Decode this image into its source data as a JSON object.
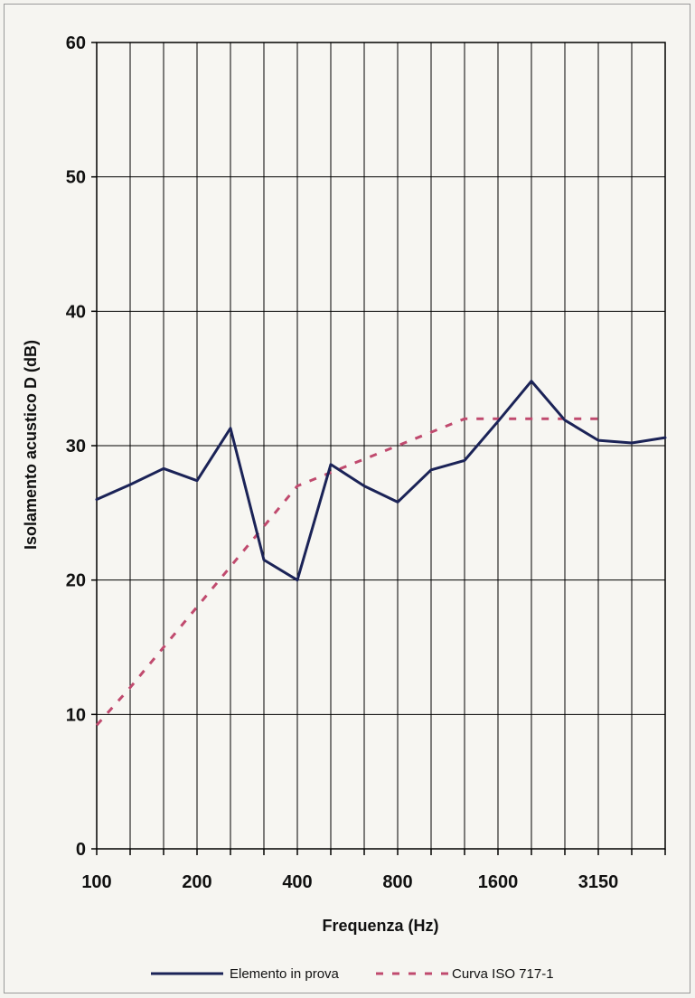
{
  "chart_data": {
    "type": "line",
    "title": "",
    "xlabel": "Frequenza  (Hz)",
    "ylabel": "Isolamento acustico D (dB)",
    "ylim": [
      0,
      60
    ],
    "yticks": [
      "0",
      "10",
      "20",
      "30",
      "40",
      "50",
      "60"
    ],
    "x_scale": "log (1/3 octave bands)",
    "xtick_labels": [
      "100",
      "200",
      "400",
      "800",
      "1600",
      "3150"
    ],
    "x": [
      "100",
      "125",
      "160",
      "200",
      "250",
      "315",
      "400",
      "500",
      "630",
      "800",
      "1000",
      "1250",
      "1600",
      "2000",
      "2500",
      "3150",
      "4000",
      "5000"
    ],
    "grid": true,
    "legend_position": "bottom",
    "series": [
      {
        "name": "Elemento in prova",
        "color": "#1b2357",
        "style": "solid",
        "values": [
          26.0,
          27.1,
          28.3,
          27.4,
          31.3,
          21.5,
          20.0,
          28.6,
          27.0,
          25.8,
          28.2,
          28.9,
          31.8,
          34.8,
          31.9,
          30.4,
          30.2,
          30.6
        ]
      },
      {
        "name": "Curva ISO 717-1",
        "color": "#c04a6e",
        "style": "dashed",
        "values": [
          9.2,
          12.0,
          15.0,
          18.0,
          21.0,
          24.0,
          27.0,
          28.0,
          29.0,
          30.0,
          31.0,
          32.0,
          32.0,
          32.0,
          32.0,
          32.0,
          null,
          null
        ]
      }
    ]
  }
}
